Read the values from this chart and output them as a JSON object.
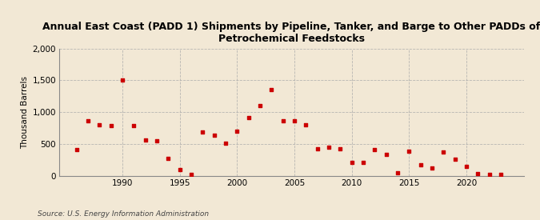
{
  "title": "Annual East Coast (PADD 1) Shipments by Pipeline, Tanker, and Barge to Other PADDs of\nPetrochemical Feedstocks",
  "ylabel": "Thousand Barrels",
  "source": "Source: U.S. Energy Information Administration",
  "background_color": "#f2e8d5",
  "plot_bg_color": "#f2e8d5",
  "marker_color": "#cc0000",
  "ylim": [
    0,
    2000
  ],
  "yticks": [
    0,
    500,
    1000,
    1500,
    2000
  ],
  "xlim": [
    1984.5,
    2025
  ],
  "xticks": [
    1990,
    1995,
    2000,
    2005,
    2010,
    2015,
    2020
  ],
  "years": [
    1986,
    1987,
    1988,
    1989,
    1990,
    1991,
    1992,
    1993,
    1994,
    1995,
    1996,
    1997,
    1998,
    1999,
    2000,
    2001,
    2002,
    2003,
    2004,
    2005,
    2006,
    2007,
    2008,
    2009,
    2010,
    2011,
    2012,
    2013,
    2014,
    2015,
    2016,
    2017,
    2018,
    2019,
    2020,
    2021,
    2022,
    2023
  ],
  "values": [
    420,
    870,
    800,
    790,
    1500,
    790,
    570,
    550,
    270,
    100,
    20,
    690,
    640,
    510,
    700,
    920,
    1100,
    1360,
    860,
    870,
    800,
    430,
    450,
    430,
    210,
    210,
    420,
    340,
    50,
    390,
    170,
    130,
    370,
    265,
    150,
    40,
    30,
    20
  ]
}
